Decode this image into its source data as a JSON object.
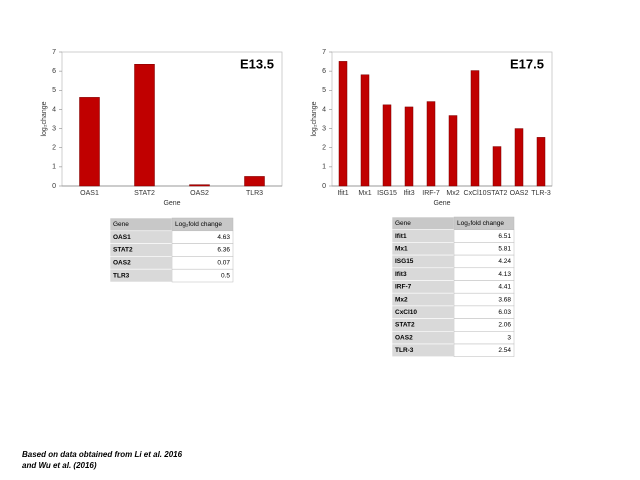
{
  "chart_data": [
    {
      "type": "bar",
      "title": "E13.5",
      "xlabel": "Gene",
      "ylabel": "log₂change",
      "categories": [
        "OAS1",
        "STAT2",
        "OAS2",
        "TLR3"
      ],
      "values": [
        4.63,
        6.36,
        0.07,
        0.5
      ],
      "color": "#c00000",
      "ylim": [
        0,
        7
      ],
      "yticks": [
        0,
        1,
        2,
        3,
        4,
        5,
        6,
        7
      ]
    },
    {
      "type": "bar",
      "title": "E17.5",
      "xlabel": "Gene",
      "ylabel": "log₂change",
      "categories": [
        "Ifit1",
        "Mx1",
        "ISG15",
        "Ifit3",
        "IRF-7",
        "Mx2",
        "CxCl10",
        "STAT2",
        "OAS2",
        "TLR-3"
      ],
      "values": [
        6.51,
        5.81,
        4.24,
        4.13,
        4.41,
        3.68,
        6.03,
        2.06,
        3,
        2.54
      ],
      "color": "#c00000",
      "ylim": [
        0,
        7
      ],
      "yticks": [
        0,
        1,
        2,
        3,
        4,
        5,
        6,
        7
      ]
    }
  ],
  "tables": [
    {
      "header": [
        "Gene",
        "Log₂fold change"
      ],
      "rows": [
        [
          "OAS1",
          "4.63"
        ],
        [
          "STAT2",
          "6.36"
        ],
        [
          "OAS2",
          "0.07"
        ],
        [
          "TLR3",
          "0.5"
        ]
      ]
    },
    {
      "header": [
        "Gene",
        "Log₂fold change"
      ],
      "rows": [
        [
          "Ifit1",
          "6.51"
        ],
        [
          "Mx1",
          "5.81"
        ],
        [
          "ISG15",
          "4.24"
        ],
        [
          "Ifit3",
          "4.13"
        ],
        [
          "IRF-7",
          "4.41"
        ],
        [
          "Mx2",
          "3.68"
        ],
        [
          "CxCl10",
          "6.03"
        ],
        [
          "STAT2",
          "2.06"
        ],
        [
          "OAS2",
          "3"
        ],
        [
          "TLR-3",
          "2.54"
        ]
      ]
    }
  ],
  "footnote": [
    "Based on data obtained from Li et al. 2016",
    "and Wu et al. (2016)"
  ]
}
